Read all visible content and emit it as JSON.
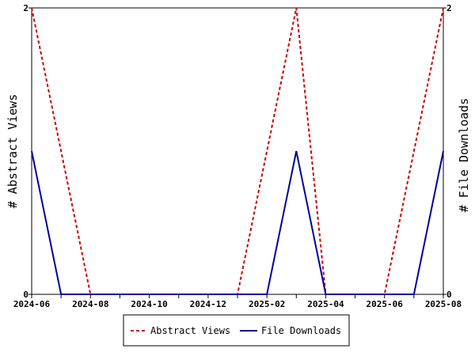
{
  "chart_data": {
    "type": "line",
    "x": [
      "2024-06",
      "2024-07",
      "2024-08",
      "2024-09",
      "2024-10",
      "2024-11",
      "2024-12",
      "2025-01",
      "2025-02",
      "2025-03",
      "2025-04",
      "2025-05",
      "2025-06",
      "2025-07",
      "2025-08"
    ],
    "x_tick_labels": [
      "2024-06",
      "2024-08",
      "2024-10",
      "2024-12",
      "2025-02",
      "2025-04",
      "2025-06",
      "2025-08"
    ],
    "series": [
      {
        "name": "Abstract Views",
        "axis": "left",
        "color": "#cc0000",
        "dash": "dashed",
        "values": [
          2,
          1,
          0,
          0,
          0,
          0,
          0,
          0,
          1,
          2,
          0,
          0,
          0,
          1,
          2
        ]
      },
      {
        "name": "File Downloads",
        "axis": "right",
        "color": "#000099",
        "dash": "solid",
        "values": [
          1,
          0,
          0,
          0,
          0,
          0,
          0,
          0,
          0,
          1,
          0,
          0,
          0,
          0,
          1
        ]
      }
    ],
    "ylabel_left": "# Abstract Views",
    "ylabel_right": "# File Downloads",
    "ylim_left": [
      0,
      2
    ],
    "ylim_right": [
      0,
      2
    ],
    "y_ticks_left": [
      "0",
      "2"
    ],
    "y_ticks_right": [
      "0",
      "2"
    ],
    "legend_placement": "bottom",
    "grid": false
  }
}
